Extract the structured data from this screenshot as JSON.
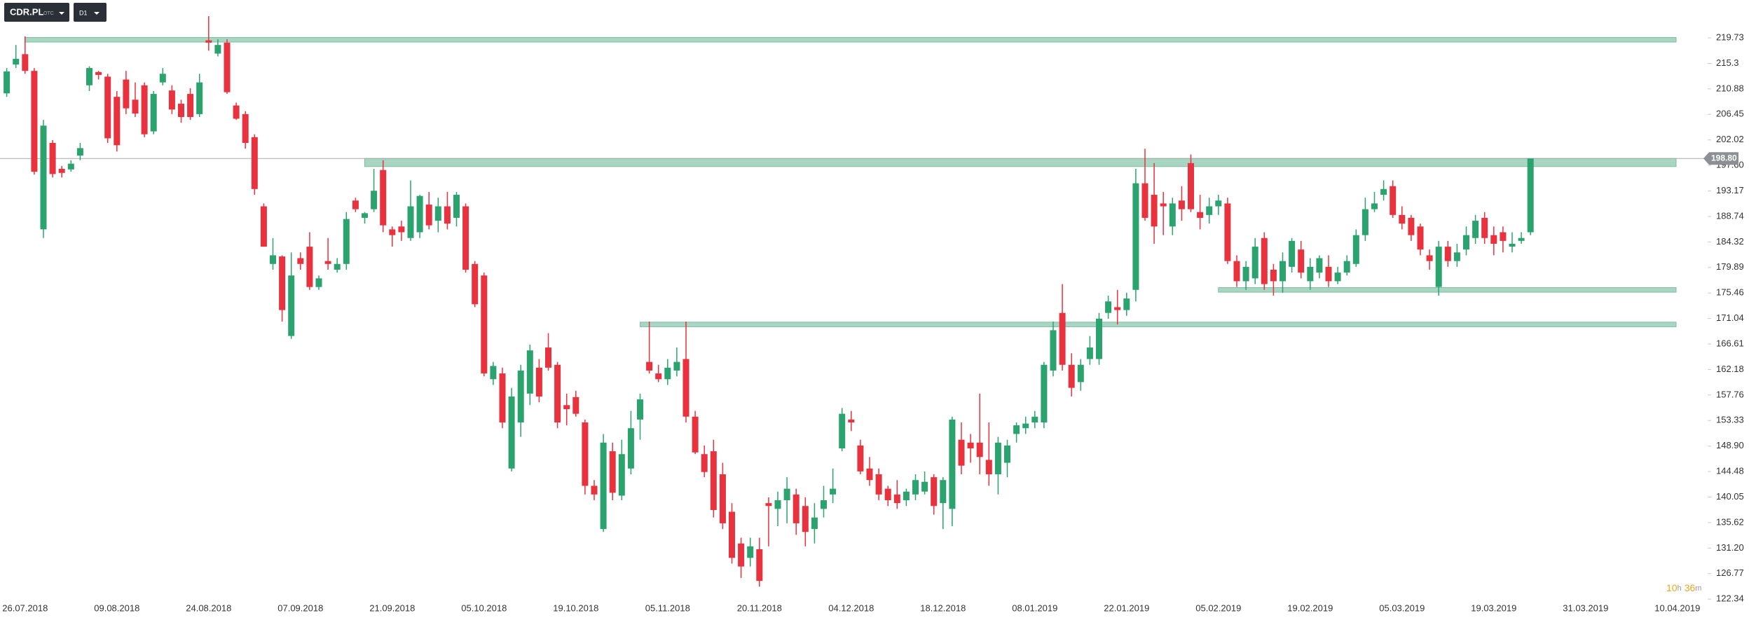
{
  "toolbar": {
    "symbol": "CDR.PL",
    "market": "OTC",
    "timeframe": "D1"
  },
  "countdown": [
    "10",
    "h",
    "36",
    "m"
  ],
  "chart_data": {
    "type": "candlestick",
    "up_color": "#2ba36f",
    "down_color": "#e8323e",
    "zone_color": "#a9d6c3",
    "ylim": [
      122.0,
      226.3
    ],
    "yticks": [
      219.73,
      215.3,
      210.88,
      206.45,
      202.02,
      {
        "value": 197.6,
        "label": "197.60"
      },
      193.17,
      188.74,
      184.32,
      179.89,
      175.46,
      171.04,
      166.61,
      162.18,
      157.76,
      153.33,
      {
        "value": 148.9,
        "label": "148.90"
      },
      144.48,
      140.05,
      135.62,
      {
        "value": 131.2,
        "label": "131.20"
      },
      126.77,
      122.34
    ],
    "last_price": {
      "value": 198.8,
      "label": "198.80"
    },
    "zones": [
      {
        "start": 2,
        "low": 219.0,
        "high": 219.8
      },
      {
        "start": 39,
        "low": 197.4,
        "high": 198.8
      },
      {
        "start": 69,
        "low": 169.6,
        "high": 170.4
      },
      {
        "start": 132,
        "low": 175.6,
        "high": 176.4
      }
    ],
    "categories": [
      null,
      null,
      "26.07.2018",
      null,
      null,
      null,
      null,
      null,
      null,
      null,
      null,
      null,
      "09.08.2018",
      null,
      null,
      null,
      null,
      null,
      null,
      null,
      null,
      null,
      "24.08.2018",
      null,
      null,
      null,
      null,
      null,
      null,
      null,
      null,
      null,
      "07.09.2018",
      null,
      null,
      null,
      null,
      null,
      null,
      null,
      null,
      null,
      "21.09.2018",
      null,
      null,
      null,
      null,
      null,
      null,
      null,
      null,
      null,
      "05.10.2018",
      null,
      null,
      null,
      null,
      null,
      null,
      null,
      null,
      null,
      "19.10.2018",
      null,
      null,
      null,
      null,
      null,
      null,
      null,
      null,
      null,
      "05.11.2018",
      null,
      null,
      null,
      null,
      null,
      null,
      null,
      null,
      null,
      "20.11.2018",
      null,
      null,
      null,
      null,
      null,
      null,
      null,
      null,
      null,
      "04.12.2018",
      null,
      null,
      null,
      null,
      null,
      null,
      null,
      null,
      null,
      "18.12.2018",
      null,
      null,
      null,
      null,
      null,
      null,
      null,
      null,
      null,
      "08.01.2019",
      null,
      null,
      null,
      null,
      null,
      null,
      null,
      null,
      null,
      "22.01.2019",
      null,
      null,
      null,
      null,
      null,
      null,
      null,
      null,
      null,
      "05.02.2019",
      null,
      null,
      null,
      null,
      null,
      null,
      null,
      null,
      null,
      "19.02.2019",
      null,
      null,
      null,
      null,
      null,
      null,
      null,
      null,
      null,
      "05.03.2019",
      null,
      null,
      null,
      null,
      null,
      null,
      null,
      null,
      null,
      "19.03.2019",
      null,
      null,
      null,
      null,
      null,
      null,
      null,
      null,
      null,
      "31.03.2019",
      null,
      null,
      null,
      null,
      null,
      null,
      null,
      null,
      null,
      "10.04.2019",
      null,
      null
    ],
    "open": [
      210.1,
      215.1,
      216.9,
      214.0,
      186.5,
      201.5,
      197.0,
      196.9,
      199.3,
      211.5,
      213.8,
      213.0,
      209.5,
      212.5,
      209.0,
      211.5,
      203.5,
      212.0,
      210.6,
      208.3,
      210.0,
      206.5,
      219.3,
      217.0,
      218.9,
      208.0,
      206.5,
      202.5,
      190.5,
      180.5,
      181.8,
      168.0,
      181.5,
      183.5,
      176.5,
      181.0,
      179.5,
      180.5,
      191.5,
      188.5,
      190.0,
      196.8,
      186.5,
      187.0,
      185.0,
      186.0,
      190.8,
      188.0,
      190.5,
      188.5,
      190.5,
      180.5,
      178.5,
      160.5,
      161.5,
      145.0,
      153.0,
      158.0,
      162.5,
      166.0,
      163.0,
      156.0,
      157.4,
      153.0,
      142.0,
      134.5,
      148.0,
      140.3,
      145.0,
      153.5,
      163.5,
      161.5,
      160.5,
      162.0,
      164.0,
      154.0,
      147.5,
      148.0,
      144.0,
      137.5,
      132.0,
      129.5,
      131.0,
      139.0,
      138.0,
      139.5,
      140.5,
      138.5,
      134.5,
      138.0,
      140.5,
      148.5,
      153.5,
      149.0,
      145.0,
      144.0,
      141.5,
      140.5,
      139.5,
      140.5,
      141.0,
      143.5,
      139.0,
      138.0,
      150.0,
      149.5,
      149.5,
      146.5,
      144.0,
      146.0,
      151.0,
      152.0,
      153.0,
      153.0,
      162.0,
      172.0,
      163.0,
      160.0,
      164.0,
      164.0,
      172.0,
      173.0,
      172.5,
      176.0,
      194.5,
      192.5,
      191.0,
      187.0,
      191.5,
      198.0,
      189.5,
      189.0,
      190.5,
      191.0,
      181.0,
      177.5,
      178.0,
      185.0,
      179.5,
      177.5,
      180.0,
      183.0,
      177.5,
      179.0,
      180.0,
      177.5,
      179.0,
      180.5,
      185.5,
      190.0,
      192.5,
      194.0,
      189.0,
      188.5,
      187.0,
      182.0,
      176.5,
      183.5,
      181.0,
      183.0,
      185.0,
      188.5,
      185.5,
      186.0,
      183.5,
      184.5,
      186.0,
      null,
      null,
      null,
      null,
      null,
      null,
      null,
      null,
      null,
      null,
      null,
      null,
      null,
      null,
      null,
      null,
      null,
      null
    ],
    "high": [
      214.5,
      218.5,
      220.0,
      214.5,
      205.5,
      202.0,
      197.5,
      198.5,
      201.5,
      214.8,
      214.0,
      213.5,
      210.5,
      214.0,
      212.0,
      212.0,
      210.5,
      214.5,
      211.5,
      209.0,
      211.0,
      213.5,
      223.5,
      219.5,
      219.5,
      208.5,
      207.0,
      203.0,
      191.0,
      185.0,
      182.0,
      182.5,
      182.5,
      186.0,
      178.5,
      185.0,
      181.5,
      189.5,
      192.0,
      189.5,
      197.0,
      198.5,
      187.0,
      188.0,
      195.0,
      192.5,
      193.0,
      192.0,
      193.0,
      193.0,
      191.0,
      181.0,
      179.0,
      163.5,
      162.5,
      159.0,
      163.0,
      166.5,
      164.0,
      168.5,
      163.5,
      158.0,
      158.5,
      153.5,
      143.0,
      151.0,
      149.5,
      150.0,
      155.0,
      158.0,
      170.5,
      163.0,
      164.0,
      166.0,
      170.5,
      155.0,
      149.0,
      150.0,
      146.0,
      139.0,
      133.0,
      133.0,
      133.0,
      140.0,
      141.0,
      143.5,
      141.5,
      140.0,
      139.0,
      142.0,
      145.0,
      155.5,
      155.0,
      150.0,
      147.0,
      145.0,
      142.0,
      143.0,
      141.5,
      144.0,
      144.5,
      144.0,
      143.5,
      154.0,
      153.0,
      151.0,
      158.0,
      153.0,
      150.5,
      150.0,
      153.0,
      154.0,
      155.0,
      163.5,
      170.5,
      177.0,
      165.0,
      164.0,
      168.0,
      172.0,
      175.0,
      176.0,
      175.5,
      197.0,
      200.5,
      198.0,
      193.0,
      192.0,
      194.0,
      199.5,
      192.5,
      192.0,
      192.5,
      192.0,
      182.0,
      181.0,
      185.0,
      186.0,
      180.5,
      182.5,
      185.0,
      184.5,
      181.5,
      182.0,
      182.0,
      180.0,
      182.0,
      186.5,
      192.0,
      193.0,
      195.0,
      195.0,
      190.5,
      189.0,
      187.5,
      183.0,
      184.5,
      184.5,
      184.0,
      187.0,
      189.0,
      189.5,
      187.0,
      187.0,
      186.0,
      186.0,
      198.8,
      null,
      null,
      null,
      null,
      null,
      null,
      null,
      null,
      null,
      null,
      null,
      null,
      null,
      null,
      null,
      null,
      null,
      null
    ],
    "low": [
      209.5,
      214.5,
      213.5,
      196.0,
      185.0,
      195.5,
      195.5,
      196.5,
      198.5,
      210.5,
      212.5,
      201.5,
      200.0,
      206.5,
      206.0,
      202.5,
      203.0,
      211.5,
      206.5,
      205.0,
      205.5,
      206.0,
      217.5,
      216.5,
      210.0,
      205.5,
      200.5,
      192.5,
      183.5,
      179.5,
      170.5,
      167.5,
      179.5,
      176.0,
      176.0,
      179.5,
      179.0,
      179.5,
      189.5,
      187.5,
      189.5,
      186.0,
      183.5,
      184.5,
      184.5,
      185.0,
      186.5,
      186.0,
      186.5,
      187.0,
      179.0,
      173.0,
      161.0,
      159.5,
      152.0,
      144.5,
      150.5,
      156.0,
      156.5,
      162.0,
      152.0,
      152.5,
      154.0,
      140.5,
      139.5,
      134.0,
      139.5,
      139.5,
      144.0,
      150.0,
      161.5,
      160.0,
      159.5,
      161.0,
      153.0,
      147.5,
      143.5,
      136.5,
      134.5,
      128.5,
      126.0,
      128.0,
      124.5,
      131.5,
      135.0,
      135.5,
      133.5,
      131.5,
      132.0,
      136.5,
      139.0,
      148.0,
      151.5,
      144.0,
      142.0,
      139.5,
      138.5,
      138.0,
      138.5,
      139.5,
      140.5,
      137.0,
      134.5,
      135.0,
      144.0,
      146.0,
      144.0,
      142.0,
      140.5,
      143.5,
      149.5,
      151.0,
      152.0,
      152.0,
      161.0,
      162.0,
      157.5,
      158.5,
      163.0,
      163.0,
      171.0,
      170.0,
      171.5,
      174.0,
      188.0,
      184.0,
      185.5,
      185.5,
      188.0,
      189.5,
      186.5,
      187.5,
      189.0,
      180.5,
      176.5,
      176.0,
      177.0,
      176.0,
      175.0,
      175.5,
      179.0,
      178.0,
      176.0,
      178.0,
      176.5,
      177.0,
      178.5,
      180.0,
      184.5,
      189.5,
      191.5,
      188.5,
      186.5,
      184.5,
      182.0,
      179.5,
      175.0,
      180.0,
      180.0,
      182.0,
      184.0,
      184.0,
      182.0,
      182.5,
      182.5,
      184.0,
      185.5,
      null,
      null,
      null,
      null,
      null,
      null,
      null,
      null,
      null,
      null,
      null,
      null,
      null,
      null,
      null,
      null,
      null,
      null
    ],
    "close": [
      213.9,
      216.1,
      214.0,
      196.5,
      204.5,
      196.1,
      196.3,
      197.9,
      200.6,
      214.5,
      213.3,
      202.3,
      201.1,
      207.5,
      206.6,
      203.0,
      210.0,
      213.5,
      207.3,
      206.0,
      206.0,
      212.0,
      218.9,
      218.5,
      210.3,
      205.7,
      201.5,
      193.5,
      183.5,
      182.0,
      172.5,
      178.5,
      180.5,
      176.5,
      178.0,
      180.5,
      180.5,
      188.3,
      190.0,
      189.3,
      193.2,
      187.2,
      185.5,
      186.0,
      190.5,
      192.3,
      187.2,
      190.5,
      187.5,
      192.5,
      179.5,
      173.5,
      161.5,
      162.8,
      153.0,
      157.5,
      162.0,
      165.5,
      157.5,
      162.5,
      153.0,
      155.3,
      154.5,
      142.0,
      140.5,
      149.5,
      140.8,
      147.5,
      152.0,
      157.0,
      162.0,
      160.5,
      162.5,
      163.5,
      154.0,
      147.8,
      144.4,
      137.8,
      135.5,
      129.5,
      128.0,
      131.5,
      125.5,
      138.5,
      139.5,
      141.5,
      135.5,
      134.0,
      136.5,
      139.5,
      141.5,
      154.5,
      153.0,
      144.5,
      143.0,
      140.5,
      139.5,
      139.0,
      141.0,
      143.0,
      142.7,
      138.5,
      143.0,
      153.5,
      145.5,
      148.5,
      147.0,
      144.0,
      149.5,
      149.0,
      152.5,
      152.8,
      154.0,
      163.0,
      169.0,
      163.0,
      159.0,
      163.0,
      166.0,
      171.0,
      174.0,
      172.5,
      174.5,
      194.5,
      188.5,
      187.0,
      190.5,
      191.0,
      190.0,
      190.0,
      188.5,
      190.5,
      191.5,
      181.0,
      177.5,
      180.0,
      183.5,
      177.0,
      177.5,
      181.0,
      184.5,
      179.0,
      180.0,
      181.5,
      177.5,
      179.0,
      181.0,
      185.5,
      190.0,
      191.0,
      193.5,
      189.0,
      187.5,
      185.5,
      183.0,
      181.0,
      183.5,
      181.0,
      182.5,
      185.5,
      188.0,
      185.0,
      184.0,
      184.5,
      184.0,
      185.0,
      198.8,
      null,
      null,
      null,
      null,
      null,
      null,
      null,
      null,
      null,
      null,
      null,
      null,
      null,
      null,
      null,
      null,
      null,
      null
    ]
  }
}
